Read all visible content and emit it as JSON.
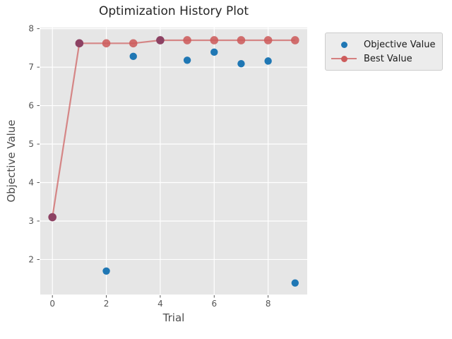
{
  "chart_data": {
    "type": "scatter",
    "title": "Optimization History Plot",
    "xlabel": "Trial",
    "ylabel": "Objective Value",
    "x": [
      0,
      1,
      2,
      3,
      4,
      5,
      6,
      7,
      8,
      9
    ],
    "series": [
      {
        "name": "Objective Value",
        "type": "scatter",
        "color": "#1f77b4",
        "values": [
          3.1,
          7.62,
          1.7,
          7.28,
          7.7,
          7.18,
          7.39,
          7.09,
          7.16,
          1.39
        ]
      },
      {
        "name": "Best Value",
        "type": "line+marker",
        "color": "#cd5c5c",
        "values": [
          3.1,
          7.62,
          7.62,
          7.62,
          7.7,
          7.7,
          7.7,
          7.7,
          7.7,
          7.7
        ]
      }
    ],
    "xticks": [
      0,
      2,
      4,
      6,
      8
    ],
    "yticks": [
      2,
      3,
      4,
      5,
      6,
      7,
      8
    ],
    "xlim": [
      -0.45,
      9.45
    ],
    "ylim": [
      1.09,
      8.03
    ],
    "grid": true,
    "legend_position": "outside-upper-right",
    "colors": {
      "plot_bg": "#e6e6e6",
      "grid": "#ffffff",
      "tick_label": "#555555",
      "tick_mark": "#444444",
      "title": "#262626",
      "axis_label": "#4d4d4d",
      "overlap_marker": "#8d4263"
    }
  }
}
